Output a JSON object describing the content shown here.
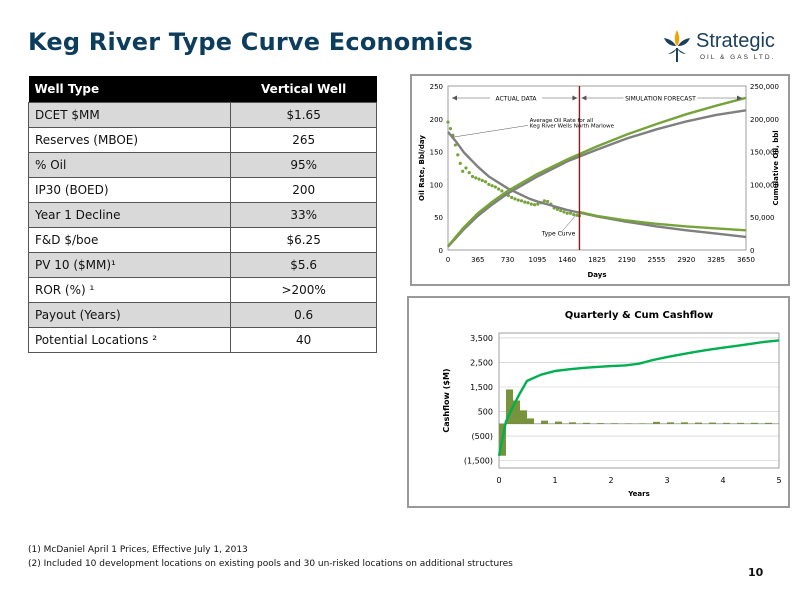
{
  "title": "Keg River Type Curve Economics",
  "logo": {
    "word": "Strategic",
    "sub": "OIL & GAS LTD."
  },
  "table": {
    "headers": [
      "Well Type",
      "Vertical  Well"
    ],
    "rows": [
      {
        "label": "DCET $MM",
        "value": "$1.65"
      },
      {
        "label": "Reserves (MBOE)",
        "value": "265"
      },
      {
        "label": "% Oil",
        "value": "95%"
      },
      {
        "label": "IP30 (BOED)",
        "value": "200"
      },
      {
        "label": "Year 1 Decline",
        "value": "33%"
      },
      {
        "label": "F&D $/boe",
        "value": "$6.25"
      },
      {
        "label": "PV 10 ($MM)¹",
        "value": "$5.6"
      },
      {
        "label": "ROR (%) ¹",
        "value": ">200%"
      },
      {
        "label": "Payout (Years)",
        "value": "0.6"
      },
      {
        "label": "Potential Locations ²",
        "value": "40"
      }
    ]
  },
  "chart_data": [
    {
      "type": "line",
      "title": "",
      "xlabel": "Days",
      "ylabel": "Oil Rate, Bbl/day",
      "y2label": "Cumulative Oil, bbl",
      "xlim": [
        0,
        3650
      ],
      "ylim": [
        0,
        250
      ],
      "y2lim": [
        0,
        250000
      ],
      "xticks": [
        "0",
        "365",
        "730",
        "1095",
        "1460",
        "1825",
        "2190",
        "2555",
        "2920",
        "3285",
        "3650"
      ],
      "yticks": [
        "0",
        "50",
        "100",
        "150",
        "200",
        "250"
      ],
      "y2ticks": [
        "0",
        "50,000",
        "100,000",
        "150,000",
        "200,000",
        "250,000"
      ],
      "annotations": {
        "actual": "ACTUAL DATA",
        "forecast": "SIMULATION FORECAST",
        "avg_line1": "Average Oil Rate for all",
        "avg_line2": "Keg River Wells North Marlowe",
        "type_curve": "Type Curve"
      },
      "divider_x": 1610,
      "colors": {
        "gray": "#7f7f7f",
        "green": "#77a33b",
        "divider": "#8b1a1a"
      },
      "series": [
        {
          "axis": "left",
          "style": "dots",
          "x": [
            0,
            30,
            60,
            90,
            120,
            150,
            180,
            220,
            260,
            300,
            340,
            380,
            420,
            460,
            500,
            540,
            580,
            620,
            660,
            700,
            740,
            780,
            820,
            860,
            900,
            940,
            980,
            1020,
            1060,
            1100,
            1140,
            1180,
            1220,
            1260,
            1300,
            1340,
            1380,
            1420,
            1460,
            1500,
            1540,
            1580,
            1610
          ],
          "y": [
            195,
            185,
            175,
            160,
            145,
            132,
            120,
            125,
            118,
            112,
            110,
            108,
            106,
            104,
            100,
            98,
            96,
            93,
            90,
            86,
            83,
            80,
            78,
            76,
            75,
            73,
            72,
            70,
            69,
            70,
            72,
            75,
            74,
            70,
            64,
            62,
            60,
            58,
            56,
            56,
            54,
            53,
            52
          ]
        },
        {
          "axis": "left",
          "style": "line",
          "color": "gray",
          "x": [
            0,
            100,
            200,
            365,
            500,
            730,
            1000,
            1095,
            1460,
            1825,
            2190,
            2555,
            2920,
            3285,
            3650
          ],
          "y": [
            180,
            165,
            148,
            127,
            112,
            94,
            78,
            74,
            61,
            51,
            43,
            36,
            30,
            25,
            20
          ]
        },
        {
          "axis": "left",
          "style": "line",
          "color": "green",
          "x": [
            1610,
            1825,
            2190,
            2555,
            2920,
            3285,
            3650
          ],
          "y": [
            58,
            52,
            45,
            40,
            36,
            33,
            30
          ]
        },
        {
          "axis": "right",
          "style": "line",
          "color": "gray",
          "x": [
            0,
            182,
            365,
            547,
            730,
            1095,
            1460,
            1825,
            2190,
            2555,
            2920,
            3285,
            3650
          ],
          "y": [
            5000,
            30000,
            52000,
            70000,
            86000,
            112000,
            135000,
            153000,
            170000,
            184000,
            196000,
            206000,
            213000
          ]
        },
        {
          "axis": "right",
          "style": "line",
          "color": "green",
          "x": [
            0,
            182,
            365,
            547,
            730,
            1095,
            1460,
            1825,
            2190,
            2555,
            2920,
            3285,
            3650
          ],
          "y": [
            6000,
            33000,
            56000,
            74000,
            90000,
            116000,
            138000,
            158000,
            176000,
            192000,
            207000,
            220000,
            232000
          ]
        }
      ]
    },
    {
      "type": "bar",
      "title": "Quarterly  & Cum Cashflow",
      "xlabel": "Years",
      "ylabel": "Cashflow ($M)",
      "xlim": [
        0,
        5
      ],
      "ylim": [
        -1800,
        3700
      ],
      "xticks": [
        "0",
        "1",
        "2",
        "3",
        "4",
        "5"
      ],
      "yticks": [
        "(1,500)",
        "(500)",
        "500",
        "1,500",
        "2,500",
        "3,500"
      ],
      "ytick_values": [
        -1500,
        -500,
        500,
        1500,
        2500,
        3500
      ],
      "colors": {
        "bar": "#77933c",
        "line": "#00b050",
        "grid": "#c8c8c8"
      },
      "bars": {
        "name": "Quarterly",
        "x_start": [
          0,
          0.125,
          0.25,
          0.375,
          0.5,
          0.75,
          1,
          1.25,
          1.5,
          1.75,
          2,
          2.25,
          2.5,
          2.75,
          3,
          3.25,
          3.5,
          3.75,
          4,
          4.25,
          4.5,
          4.75
        ],
        "width": 0.125,
        "values": [
          -1300,
          1400,
          950,
          550,
          220,
          130,
          90,
          60,
          40,
          30,
          25,
          20,
          20,
          80,
          60,
          60,
          50,
          50,
          40,
          40,
          40,
          40
        ]
      },
      "line": {
        "name": "Cumulative",
        "x": [
          0,
          0.125,
          0.25,
          0.375,
          0.5,
          0.75,
          1,
          1.25,
          1.5,
          1.75,
          2,
          2.25,
          2.5,
          2.75,
          3,
          3.25,
          3.5,
          3.75,
          4,
          4.25,
          4.5,
          4.75,
          5
        ],
        "values": [
          -1300,
          100,
          700,
          1250,
          1750,
          2000,
          2150,
          2220,
          2280,
          2320,
          2350,
          2380,
          2450,
          2600,
          2720,
          2830,
          2930,
          3020,
          3100,
          3180,
          3260,
          3340,
          3400
        ]
      }
    }
  ],
  "footnotes": [
    "(1) McDaniel April 1 Prices, Effective July 1, 2013",
    "(2) Included 10 development locations on existing pools and 30 un-risked locations on additional structures"
  ],
  "page_number": "10"
}
